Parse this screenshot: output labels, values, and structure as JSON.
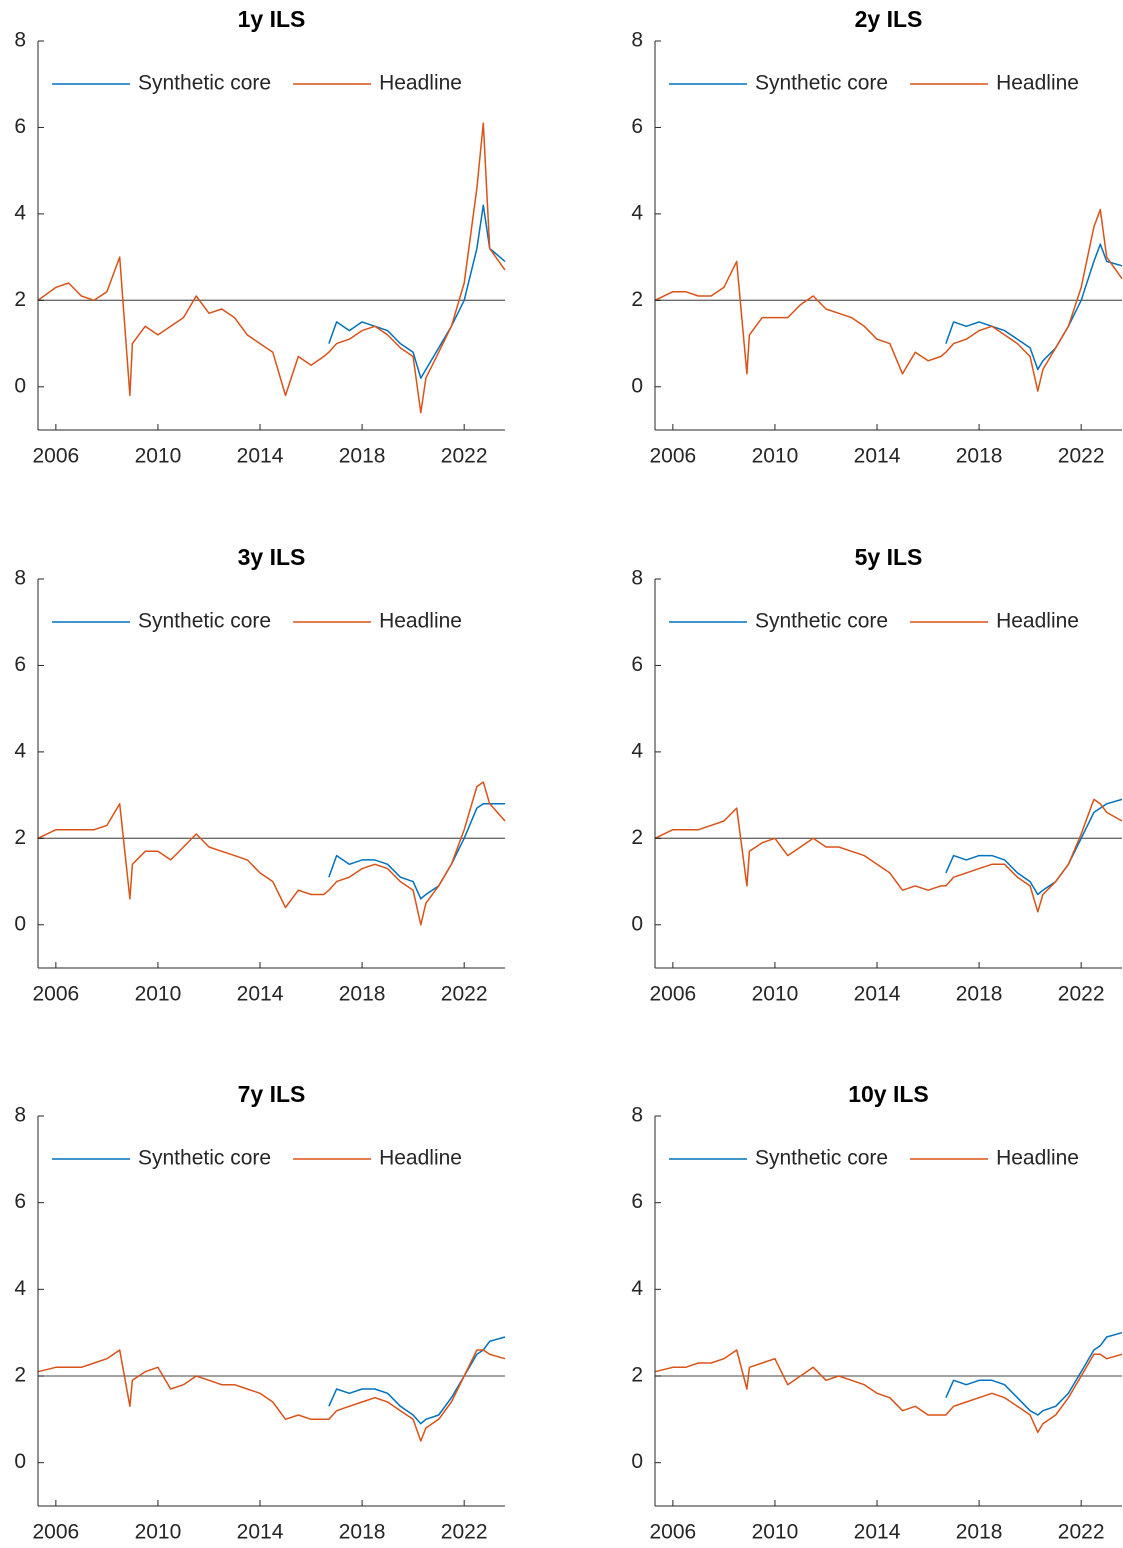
{
  "chart_data": [
    {
      "type": "line",
      "title": "1y ILS",
      "legend": "north",
      "reference_line": 2,
      "x": [
        2005.3,
        2006,
        2006.5,
        2007,
        2007.5,
        2008,
        2008.5,
        2008.9,
        2009,
        2009.5,
        2010,
        2010.5,
        2011,
        2011.5,
        2012,
        2012.5,
        2013,
        2013.5,
        2014,
        2014.5,
        2015,
        2015.5,
        2016,
        2016.5,
        2016.7,
        2017,
        2017.5,
        2018,
        2018.5,
        2019,
        2019.5,
        2020,
        2020.3,
        2020.5,
        2021,
        2021.5,
        2022,
        2022.5,
        2022.75,
        2023,
        2023.6
      ],
      "series": [
        {
          "name": "Synthetic core",
          "color": "#0072BD",
          "values": [
            null,
            null,
            null,
            null,
            null,
            null,
            null,
            null,
            null,
            null,
            null,
            null,
            null,
            null,
            null,
            null,
            null,
            null,
            null,
            null,
            null,
            null,
            null,
            null,
            1.0,
            1.5,
            1.3,
            1.5,
            1.4,
            1.3,
            1.0,
            0.8,
            0.2,
            0.4,
            0.9,
            1.4,
            2.0,
            3.2,
            4.2,
            3.2,
            2.9
          ]
        },
        {
          "name": "Headline",
          "color": "#D95319",
          "values": [
            2.0,
            2.3,
            2.4,
            2.1,
            2.0,
            2.2,
            3.0,
            -0.2,
            1.0,
            1.4,
            1.2,
            1.4,
            1.6,
            2.1,
            1.7,
            1.8,
            1.6,
            1.2,
            1.0,
            0.8,
            -0.2,
            0.7,
            0.5,
            0.7,
            0.8,
            1.0,
            1.1,
            1.3,
            1.4,
            1.2,
            0.9,
            0.7,
            -0.6,
            0.2,
            0.8,
            1.4,
            2.4,
            4.6,
            6.1,
            3.2,
            2.7
          ]
        }
      ],
      "xlim": [
        2005.3,
        2023.6
      ],
      "xticks": [
        2006,
        2010,
        2014,
        2018,
        2022
      ],
      "ylim": [
        -1,
        8
      ],
      "yticks": [
        0,
        2,
        4,
        6,
        8
      ]
    },
    {
      "type": "line",
      "title": "2y ILS",
      "legend": "north",
      "reference_line": 2,
      "x": [
        2005.3,
        2006,
        2006.5,
        2007,
        2007.5,
        2008,
        2008.5,
        2008.9,
        2009,
        2009.5,
        2010,
        2010.5,
        2011,
        2011.5,
        2012,
        2012.5,
        2013,
        2013.5,
        2014,
        2014.5,
        2015,
        2015.5,
        2016,
        2016.5,
        2016.7,
        2017,
        2017.5,
        2018,
        2018.5,
        2019,
        2019.5,
        2020,
        2020.3,
        2020.5,
        2021,
        2021.5,
        2022,
        2022.5,
        2022.75,
        2023,
        2023.6
      ],
      "series": [
        {
          "name": "Synthetic core",
          "color": "#0072BD",
          "values": [
            null,
            null,
            null,
            null,
            null,
            null,
            null,
            null,
            null,
            null,
            null,
            null,
            null,
            null,
            null,
            null,
            null,
            null,
            null,
            null,
            null,
            null,
            null,
            null,
            1.0,
            1.5,
            1.4,
            1.5,
            1.4,
            1.3,
            1.1,
            0.9,
            0.4,
            0.6,
            0.9,
            1.4,
            2.0,
            2.9,
            3.3,
            2.9,
            2.8
          ]
        },
        {
          "name": "Headline",
          "color": "#D95319",
          "values": [
            2.0,
            2.2,
            2.2,
            2.1,
            2.1,
            2.3,
            2.9,
            0.3,
            1.2,
            1.6,
            1.6,
            1.6,
            1.9,
            2.1,
            1.8,
            1.7,
            1.6,
            1.4,
            1.1,
            1.0,
            0.3,
            0.8,
            0.6,
            0.7,
            0.8,
            1.0,
            1.1,
            1.3,
            1.4,
            1.2,
            1.0,
            0.7,
            -0.1,
            0.4,
            0.9,
            1.4,
            2.3,
            3.7,
            4.1,
            3.0,
            2.5
          ]
        }
      ],
      "xlim": [
        2005.3,
        2023.6
      ],
      "xticks": [
        2006,
        2010,
        2014,
        2018,
        2022
      ],
      "ylim": [
        -1,
        8
      ],
      "yticks": [
        0,
        2,
        4,
        6,
        8
      ]
    },
    {
      "type": "line",
      "title": "3y ILS",
      "legend": "north",
      "reference_line": 2,
      "x": [
        2005.3,
        2006,
        2006.5,
        2007,
        2007.5,
        2008,
        2008.5,
        2008.9,
        2009,
        2009.5,
        2010,
        2010.5,
        2011,
        2011.5,
        2012,
        2012.5,
        2013,
        2013.5,
        2014,
        2014.5,
        2015,
        2015.5,
        2016,
        2016.5,
        2016.7,
        2017,
        2017.5,
        2018,
        2018.5,
        2019,
        2019.5,
        2020,
        2020.3,
        2020.5,
        2021,
        2021.5,
        2022,
        2022.5,
        2022.75,
        2023,
        2023.6
      ],
      "series": [
        {
          "name": "Synthetic core",
          "color": "#0072BD",
          "values": [
            null,
            null,
            null,
            null,
            null,
            null,
            null,
            null,
            null,
            null,
            null,
            null,
            null,
            null,
            null,
            null,
            null,
            null,
            null,
            null,
            null,
            null,
            null,
            null,
            1.1,
            1.6,
            1.4,
            1.5,
            1.5,
            1.4,
            1.1,
            1.0,
            0.6,
            0.7,
            0.9,
            1.4,
            2.0,
            2.7,
            2.8,
            2.8,
            2.8
          ]
        },
        {
          "name": "Headline",
          "color": "#D95319",
          "values": [
            2.0,
            2.2,
            2.2,
            2.2,
            2.2,
            2.3,
            2.8,
            0.6,
            1.4,
            1.7,
            1.7,
            1.5,
            1.8,
            2.1,
            1.8,
            1.7,
            1.6,
            1.5,
            1.2,
            1.0,
            0.4,
            0.8,
            0.7,
            0.7,
            0.8,
            1.0,
            1.1,
            1.3,
            1.4,
            1.3,
            1.0,
            0.8,
            0.0,
            0.5,
            0.9,
            1.4,
            2.2,
            3.2,
            3.3,
            2.8,
            2.4
          ]
        }
      ],
      "xlim": [
        2005.3,
        2023.6
      ],
      "xticks": [
        2006,
        2010,
        2014,
        2018,
        2022
      ],
      "ylim": [
        -1,
        8
      ],
      "yticks": [
        0,
        2,
        4,
        6,
        8
      ]
    },
    {
      "type": "line",
      "title": "5y ILS",
      "legend": "north",
      "reference_line": 2,
      "x": [
        2005.3,
        2006,
        2006.5,
        2007,
        2007.5,
        2008,
        2008.5,
        2008.9,
        2009,
        2009.5,
        2010,
        2010.5,
        2011,
        2011.5,
        2012,
        2012.5,
        2013,
        2013.5,
        2014,
        2014.5,
        2015,
        2015.5,
        2016,
        2016.5,
        2016.7,
        2017,
        2017.5,
        2018,
        2018.5,
        2019,
        2019.5,
        2020,
        2020.3,
        2020.5,
        2021,
        2021.5,
        2022,
        2022.5,
        2022.75,
        2023,
        2023.6
      ],
      "series": [
        {
          "name": "Synthetic core",
          "color": "#0072BD",
          "values": [
            null,
            null,
            null,
            null,
            null,
            null,
            null,
            null,
            null,
            null,
            null,
            null,
            null,
            null,
            null,
            null,
            null,
            null,
            null,
            null,
            null,
            null,
            null,
            null,
            1.2,
            1.6,
            1.5,
            1.6,
            1.6,
            1.5,
            1.2,
            1.0,
            0.7,
            0.8,
            1.0,
            1.4,
            2.0,
            2.6,
            2.7,
            2.8,
            2.9
          ]
        },
        {
          "name": "Headline",
          "color": "#D95319",
          "values": [
            2.0,
            2.2,
            2.2,
            2.2,
            2.3,
            2.4,
            2.7,
            0.9,
            1.7,
            1.9,
            2.0,
            1.6,
            1.8,
            2.0,
            1.8,
            1.8,
            1.7,
            1.6,
            1.4,
            1.2,
            0.8,
            0.9,
            0.8,
            0.9,
            0.9,
            1.1,
            1.2,
            1.3,
            1.4,
            1.4,
            1.1,
            0.9,
            0.3,
            0.7,
            1.0,
            1.4,
            2.1,
            2.9,
            2.8,
            2.6,
            2.4
          ]
        }
      ],
      "xlim": [
        2005.3,
        2023.6
      ],
      "xticks": [
        2006,
        2010,
        2014,
        2018,
        2022
      ],
      "ylim": [
        -1,
        8
      ],
      "yticks": [
        0,
        2,
        4,
        6,
        8
      ]
    },
    {
      "type": "line",
      "title": "7y ILS",
      "legend": "north",
      "reference_line": 2,
      "x": [
        2005.3,
        2006,
        2006.5,
        2007,
        2007.5,
        2008,
        2008.5,
        2008.9,
        2009,
        2009.5,
        2010,
        2010.5,
        2011,
        2011.5,
        2012,
        2012.5,
        2013,
        2013.5,
        2014,
        2014.5,
        2015,
        2015.5,
        2016,
        2016.5,
        2016.7,
        2017,
        2017.5,
        2018,
        2018.5,
        2019,
        2019.5,
        2020,
        2020.3,
        2020.5,
        2021,
        2021.5,
        2022,
        2022.5,
        2022.75,
        2023,
        2023.6
      ],
      "series": [
        {
          "name": "Synthetic core",
          "color": "#0072BD",
          "values": [
            null,
            null,
            null,
            null,
            null,
            null,
            null,
            null,
            null,
            null,
            null,
            null,
            null,
            null,
            null,
            null,
            null,
            null,
            null,
            null,
            null,
            null,
            null,
            null,
            1.3,
            1.7,
            1.6,
            1.7,
            1.7,
            1.6,
            1.3,
            1.1,
            0.9,
            1.0,
            1.1,
            1.5,
            2.0,
            2.5,
            2.6,
            2.8,
            2.9
          ]
        },
        {
          "name": "Headline",
          "color": "#D95319",
          "values": [
            2.1,
            2.2,
            2.2,
            2.2,
            2.3,
            2.4,
            2.6,
            1.3,
            1.9,
            2.1,
            2.2,
            1.7,
            1.8,
            2.0,
            1.9,
            1.8,
            1.8,
            1.7,
            1.6,
            1.4,
            1.0,
            1.1,
            1.0,
            1.0,
            1.0,
            1.2,
            1.3,
            1.4,
            1.5,
            1.4,
            1.2,
            1.0,
            0.5,
            0.8,
            1.0,
            1.4,
            2.0,
            2.6,
            2.6,
            2.5,
            2.4
          ]
        }
      ],
      "xlim": [
        2005.3,
        2023.6
      ],
      "xticks": [
        2006,
        2010,
        2014,
        2018,
        2022
      ],
      "ylim": [
        -1,
        8
      ],
      "yticks": [
        0,
        2,
        4,
        6,
        8
      ]
    },
    {
      "type": "line",
      "title": "10y ILS",
      "legend": "north",
      "reference_line": 2,
      "x": [
        2005.3,
        2006,
        2006.5,
        2007,
        2007.5,
        2008,
        2008.5,
        2008.9,
        2009,
        2009.5,
        2010,
        2010.5,
        2011,
        2011.5,
        2012,
        2012.5,
        2013,
        2013.5,
        2014,
        2014.5,
        2015,
        2015.5,
        2016,
        2016.5,
        2016.7,
        2017,
        2017.5,
        2018,
        2018.5,
        2019,
        2019.5,
        2020,
        2020.3,
        2020.5,
        2021,
        2021.5,
        2022,
        2022.5,
        2022.75,
        2023,
        2023.6
      ],
      "series": [
        {
          "name": "Synthetic core",
          "color": "#0072BD",
          "values": [
            null,
            null,
            null,
            null,
            null,
            null,
            null,
            null,
            null,
            null,
            null,
            null,
            null,
            null,
            null,
            null,
            null,
            null,
            null,
            null,
            null,
            null,
            null,
            null,
            1.5,
            1.9,
            1.8,
            1.9,
            1.9,
            1.8,
            1.5,
            1.2,
            1.1,
            1.2,
            1.3,
            1.6,
            2.1,
            2.6,
            2.7,
            2.9,
            3.0
          ]
        },
        {
          "name": "Headline",
          "color": "#D95319",
          "values": [
            2.1,
            2.2,
            2.2,
            2.3,
            2.3,
            2.4,
            2.6,
            1.7,
            2.2,
            2.3,
            2.4,
            1.8,
            2.0,
            2.2,
            1.9,
            2.0,
            1.9,
            1.8,
            1.6,
            1.5,
            1.2,
            1.3,
            1.1,
            1.1,
            1.1,
            1.3,
            1.4,
            1.5,
            1.6,
            1.5,
            1.3,
            1.1,
            0.7,
            0.9,
            1.1,
            1.5,
            2.0,
            2.5,
            2.5,
            2.4,
            2.5
          ]
        }
      ],
      "xlim": [
        2005.3,
        2023.6
      ],
      "xticks": [
        2006,
        2010,
        2014,
        2018,
        2022
      ],
      "ylim": [
        -1,
        8
      ],
      "yticks": [
        0,
        2,
        4,
        6,
        8
      ]
    }
  ]
}
